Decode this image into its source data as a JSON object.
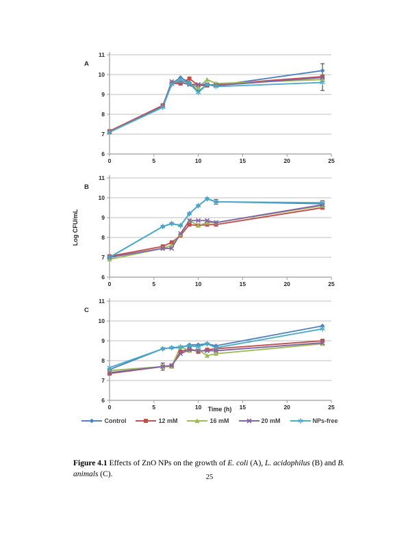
{
  "page": {
    "number": "25"
  },
  "figure": {
    "caption": {
      "label": "Figure 4.1",
      "text_1": " Effects of ZnO NPs on the growth of ",
      "italic_1": "E. coli",
      "text_2": " (A), ",
      "italic_2": "L. acidophilus",
      "text_3": " (B) and ",
      "italic_3": "B. animals",
      "text_4": " (C)."
    }
  },
  "legend": {
    "items": [
      {
        "label": "Control",
        "marker": "diamond",
        "color": "#4F81BD"
      },
      {
        "label": "12 mM",
        "marker": "square",
        "color": "#C0504D"
      },
      {
        "label": "16 mM",
        "marker": "triangle",
        "color": "#9BBB59"
      },
      {
        "label": "20 mM",
        "marker": "xmark",
        "color": "#8064A2"
      },
      {
        "label": "NPs-free",
        "marker": "star",
        "color": "#4BACC6"
      }
    ]
  },
  "chart_data": [
    {
      "type": "line",
      "panel_label": "A",
      "x": [
        0,
        6,
        7,
        8,
        9,
        10,
        11,
        12,
        24
      ],
      "xlim": [
        0,
        25
      ],
      "ylim": [
        6,
        11
      ],
      "x_ticks": [
        0,
        5,
        10,
        15,
        20,
        25
      ],
      "y_ticks": [
        6,
        7,
        8,
        9,
        10,
        11
      ],
      "xlabel": "",
      "ylabel": "",
      "grid": true,
      "legend_position": "none",
      "series": [
        {
          "name": "Control",
          "marker": "diamond",
          "color": "#4F81BD",
          "values": [
            7.15,
            8.4,
            9.55,
            9.85,
            9.6,
            9.15,
            9.5,
            9.45,
            10.2
          ],
          "errors": [
            {
              "x": 24,
              "up": 0.35,
              "down": 0.3
            }
          ]
        },
        {
          "name": "12 mM",
          "marker": "square",
          "color": "#C0504D",
          "values": [
            7.15,
            8.45,
            9.55,
            9.55,
            9.8,
            9.45,
            9.45,
            9.5,
            9.9
          ],
          "errors": []
        },
        {
          "name": "16 mM",
          "marker": "triangle",
          "color": "#9BBB59",
          "values": [
            7.1,
            8.4,
            9.6,
            9.7,
            9.55,
            9.35,
            9.75,
            9.55,
            9.75
          ],
          "errors": []
        },
        {
          "name": "20 mM",
          "marker": "xmark",
          "color": "#8064A2",
          "values": [
            7.1,
            8.4,
            9.65,
            9.6,
            9.5,
            9.5,
            9.5,
            9.45,
            9.85
          ],
          "errors": []
        },
        {
          "name": "NPs-free",
          "marker": "star",
          "color": "#4BACC6",
          "values": [
            7.1,
            8.35,
            9.5,
            9.75,
            9.55,
            9.1,
            9.5,
            9.4,
            9.6
          ],
          "errors": [
            {
              "x": 24,
              "up": 0.2,
              "down": 0.4
            }
          ]
        }
      ]
    },
    {
      "type": "line",
      "panel_label": "B",
      "x": [
        0,
        6,
        7,
        8,
        9,
        10,
        11,
        12,
        24
      ],
      "xlim": [
        0,
        25
      ],
      "ylim": [
        6,
        11
      ],
      "x_ticks": [
        0,
        5,
        10,
        15,
        20,
        25
      ],
      "y_ticks": [
        6,
        7,
        8,
        9,
        10,
        11
      ],
      "xlabel": "",
      "ylabel": "Log CFU/mL",
      "grid": true,
      "legend_position": "none",
      "series": [
        {
          "name": "Control",
          "marker": "diamond",
          "color": "#4F81BD",
          "values": [
            7.0,
            8.55,
            8.7,
            8.6,
            9.2,
            9.6,
            9.95,
            9.8,
            9.7
          ],
          "errors": [
            {
              "x": 12,
              "up": 0.12,
              "down": 0.12
            }
          ]
        },
        {
          "name": "12 mM",
          "marker": "square",
          "color": "#C0504D",
          "values": [
            7.05,
            7.55,
            7.75,
            8.1,
            8.65,
            8.6,
            8.65,
            8.65,
            9.5
          ],
          "errors": []
        },
        {
          "name": "16 mM",
          "marker": "triangle",
          "color": "#9BBB59",
          "values": [
            6.9,
            7.45,
            7.6,
            8.15,
            8.85,
            8.6,
            8.75,
            8.75,
            9.6
          ],
          "errors": []
        },
        {
          "name": "20 mM",
          "marker": "xmark",
          "color": "#8064A2",
          "values": [
            7.0,
            7.45,
            7.45,
            8.2,
            8.85,
            8.85,
            8.85,
            8.75,
            9.65
          ],
          "errors": []
        },
        {
          "name": "NPs-free",
          "marker": "star",
          "color": "#4BACC6",
          "values": [
            7.0,
            8.55,
            8.7,
            8.6,
            9.2,
            9.6,
            9.95,
            9.8,
            9.75
          ],
          "errors": [
            {
              "x": 24,
              "up": 0.1,
              "down": 0.1
            }
          ]
        }
      ]
    },
    {
      "type": "line",
      "panel_label": "C",
      "x": [
        0,
        6,
        7,
        8,
        9,
        10,
        11,
        12,
        24
      ],
      "xlim": [
        0,
        25
      ],
      "ylim": [
        6,
        11
      ],
      "x_ticks": [
        0,
        5,
        10,
        15,
        20,
        25
      ],
      "y_ticks": [
        6,
        7,
        8,
        9,
        10,
        11
      ],
      "xlabel": "Time (h)",
      "ylabel": "",
      "grid": true,
      "legend_position": "none",
      "series": [
        {
          "name": "Control",
          "marker": "diamond",
          "color": "#4F81BD",
          "values": [
            7.55,
            8.6,
            8.65,
            8.65,
            8.8,
            8.8,
            8.85,
            8.75,
            9.75
          ],
          "errors": []
        },
        {
          "name": "12 mM",
          "marker": "square",
          "color": "#C0504D",
          "values": [
            7.35,
            7.7,
            7.75,
            8.45,
            8.6,
            8.45,
            8.55,
            8.6,
            9.0
          ],
          "errors": [
            {
              "x": 6,
              "up": 0.18,
              "down": 0.18
            }
          ]
        },
        {
          "name": "16 mM",
          "marker": "triangle",
          "color": "#9BBB59",
          "values": [
            7.5,
            7.7,
            7.7,
            8.7,
            8.5,
            8.55,
            8.25,
            8.35,
            8.85
          ],
          "errors": []
        },
        {
          "name": "20 mM",
          "marker": "xmark",
          "color": "#8064A2",
          "values": [
            7.4,
            7.7,
            7.75,
            8.35,
            8.55,
            8.5,
            8.5,
            8.5,
            8.9
          ],
          "errors": []
        },
        {
          "name": "NPs-free",
          "marker": "star",
          "color": "#4BACC6",
          "values": [
            7.65,
            8.6,
            8.65,
            8.7,
            8.75,
            8.7,
            8.85,
            8.65,
            9.6
          ],
          "errors": []
        }
      ]
    }
  ],
  "style_colors": {
    "gridline": "#bfbfbf",
    "axis": "#9b9b9b",
    "tick_text": "#262626",
    "error_bar": "#1a1a1a"
  }
}
